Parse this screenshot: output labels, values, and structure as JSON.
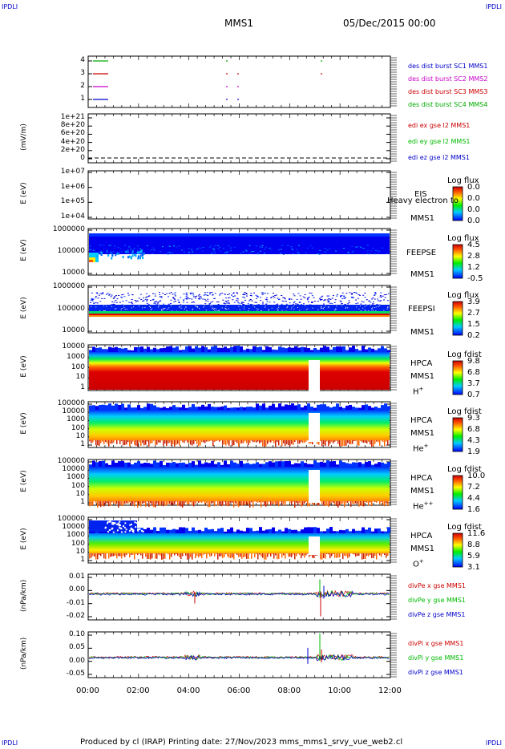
{
  "corners": {
    "tl": "IPDLI",
    "tr": "IPDLI",
    "bl": "IPDLI",
    "br": "IPDLI"
  },
  "header": {
    "mission": "MMS1",
    "date": "05/Dec/2015 00:00"
  },
  "footer": {
    "text": "Produced by cl (IRAP)    Printing date: 27/Nov/2023    mms_mms1_srvy_vue_web2.cl"
  },
  "colors": {
    "mms1": "#0000cc",
    "mms2": "#cc00cc",
    "mms3": "#cc0000",
    "mms4": "#00aa00",
    "x": "#cc0000",
    "y": "#00bb00",
    "z": "#0000cc"
  },
  "chart_data": [
    {
      "type": "scatter",
      "panel": "burst",
      "yticks": [
        "4",
        "3",
        "2",
        "1"
      ],
      "legend": [
        "des dist burst SC1 MMS1",
        "des dist burst SC2 MMS2",
        "des dist burst SC3 MMS3",
        "des dist burst SC4 MMS4"
      ]
    },
    {
      "type": "line",
      "panel": "edi",
      "ylabel": "(mV/m)",
      "yticks": [
        "1e+21",
        "8e+20",
        "6e+20",
        "4e+20",
        "2e+20",
        "0"
      ],
      "legend": [
        "edi ex gse l2 MMS1",
        "edi ey gse l2 MMS1",
        "edi ez gse l2 MMS1"
      ]
    },
    {
      "type": "heatmap",
      "panel": "eis",
      "ylabel": "E (eV)",
      "yticks": [
        "1e+07",
        "1e+06",
        "1e+05",
        "1e+04"
      ],
      "labels": [
        "EIS",
        "MMS1"
      ],
      "overlay": "Heavy electron to",
      "cb_title": "Log flux",
      "cb_values": [
        "0.0",
        "0.0",
        "0.0",
        "0.0"
      ]
    },
    {
      "type": "heatmap",
      "panel": "feeps_e",
      "ylabel": "E (eV)",
      "yticks": [
        "1000000",
        "100000",
        "10000"
      ],
      "labels": [
        "FEEPSE",
        "MMS1"
      ],
      "cb_title": "Log flux",
      "cb_values": [
        "4.5",
        "2.8",
        "1.2",
        "-0.5"
      ]
    },
    {
      "type": "heatmap",
      "panel": "feeps_i",
      "ylabel": "E (eV)",
      "yticks": [
        "1000000",
        "100000",
        "10000"
      ],
      "labels": [
        "FEEPSI",
        "MMS1"
      ],
      "cb_title": "Log flux",
      "cb_values": [
        "3.9",
        "2.7",
        "1.5",
        "0.2"
      ]
    },
    {
      "type": "heatmap",
      "panel": "hpca_h",
      "ylabel": "E (eV)",
      "yticks": [
        "10000",
        "1000",
        "100",
        "10",
        "1"
      ],
      "labels": [
        "HPCA",
        "MMS1",
        "H",
        "+"
      ],
      "cb_title": "Log fdist",
      "cb_values": [
        "9.8",
        "6.8",
        "3.7",
        "0.7"
      ]
    },
    {
      "type": "heatmap",
      "panel": "hpca_he",
      "ylabel": "E (eV)",
      "yticks": [
        "100000",
        "10000",
        "1000",
        "100",
        "10",
        "1"
      ],
      "labels": [
        "HPCA",
        "MMS1",
        "He",
        "+"
      ],
      "cb_title": "Log fdist",
      "cb_values": [
        "9.3",
        "6.8",
        "4.3",
        "1.9"
      ]
    },
    {
      "type": "heatmap",
      "panel": "hpca_hepp",
      "ylabel": "E (eV)",
      "yticks": [
        "100000",
        "10000",
        "1000",
        "100",
        "10",
        "1"
      ],
      "labels": [
        "HPCA",
        "MMS1",
        "He",
        "++"
      ],
      "cb_title": "Log fdist",
      "cb_values": [
        "10.0",
        "7.2",
        "4.4",
        "1.6"
      ]
    },
    {
      "type": "heatmap",
      "panel": "hpca_o",
      "ylabel": "E (eV)",
      "yticks": [
        "100000",
        "10000",
        "1000",
        "100",
        "10",
        "1"
      ],
      "labels": [
        "HPCA",
        "MMS1",
        "O",
        "+"
      ],
      "cb_title": "Log fdist",
      "cb_values": [
        "11.6",
        "8.8",
        "5.9",
        "3.1"
      ]
    },
    {
      "type": "line",
      "panel": "divpe",
      "ylabel": "(nPa/km)",
      "yticks": [
        "0.01",
        "0.00",
        "-0.01",
        "-0.02"
      ],
      "legend": [
        "divPe x gse MMS1",
        "divPe y gse MMS1",
        "divPe z gse MMS1"
      ]
    },
    {
      "type": "line",
      "panel": "divpi",
      "ylabel": "(nPa/km)",
      "yticks": [
        "0.10",
        "0.05",
        "0.00",
        "-0.05"
      ],
      "legend": [
        "divPi x gse MMS1",
        "divPi y gse MMS1",
        "divPi z gse MMS1"
      ]
    },
    {
      "type": "axis",
      "panel": "time",
      "xticks": [
        "00:00",
        "02:00",
        "04:00",
        "06:00",
        "08:00",
        "10:00",
        "12:00"
      ]
    }
  ]
}
